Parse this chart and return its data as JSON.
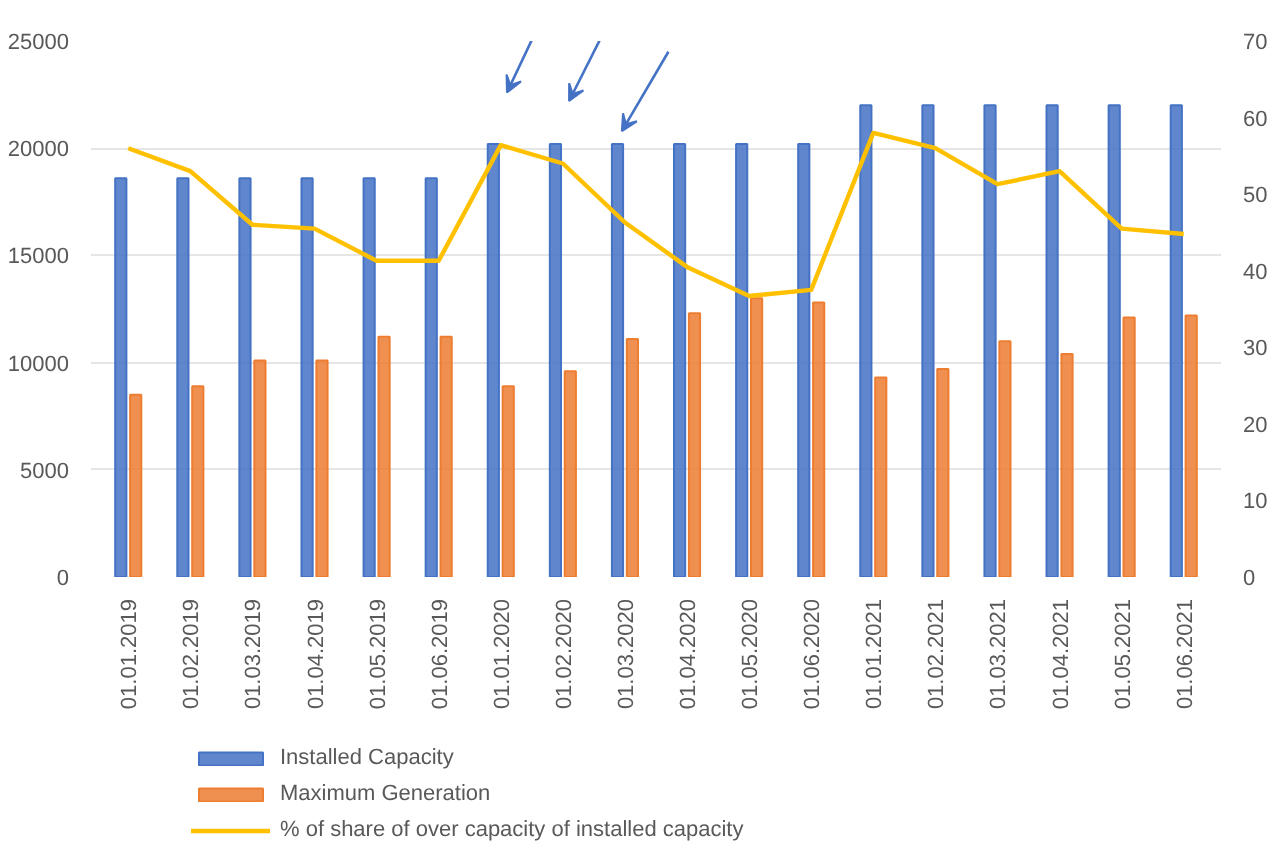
{
  "chart_data": {
    "type": "bar",
    "categories": [
      "01.01.2019",
      "01.02.2019",
      "01.03.2019",
      "01.04.2019",
      "01.05.2019",
      "01.06.2019",
      "01.01.2020",
      "01.02.2020",
      "01.03.2020",
      "01.04.2020",
      "01.05.2020",
      "01.06.2020",
      "01.01.2021",
      "01.02.2021",
      "01.03.2021",
      "01.04.2021",
      "01.05.2021",
      "01.06.2021"
    ],
    "series": [
      {
        "name": "Installed Capacity",
        "color": "#4472c4",
        "values": [
          18600,
          18600,
          18600,
          18600,
          18600,
          18600,
          20200,
          20200,
          20200,
          20200,
          20200,
          20200,
          22000,
          22000,
          22000,
          22000,
          22000,
          22000
        ]
      },
      {
        "name": "Maximum Generation",
        "color": "#ed7d31",
        "values": [
          8500,
          8900,
          10100,
          10100,
          11200,
          11200,
          8900,
          9600,
          11100,
          12300,
          13000,
          12800,
          9300,
          9700,
          11000,
          10400,
          12100,
          12200
        ]
      },
      {
        "name": "% of share of over capacity of installed capacity",
        "type": "line",
        "axis": "y2",
        "color": "#ffc000",
        "values": [
          56,
          53,
          46,
          45.5,
          41.3,
          41.3,
          56.4,
          54,
          46.3,
          40.5,
          36.7,
          37.5,
          58,
          56,
          51.3,
          53,
          45.5,
          44.8
        ]
      }
    ],
    "ylim": [
      0,
      25000
    ],
    "yticks": [
      0,
      5000,
      10000,
      15000,
      20000,
      25000
    ],
    "y2lim": [
      0,
      70
    ],
    "y2ticks": [
      0,
      10,
      20,
      30,
      40,
      50,
      60,
      70
    ],
    "grid": "y",
    "legend": "bottom",
    "marker": "none",
    "line_style": "solid"
  }
}
